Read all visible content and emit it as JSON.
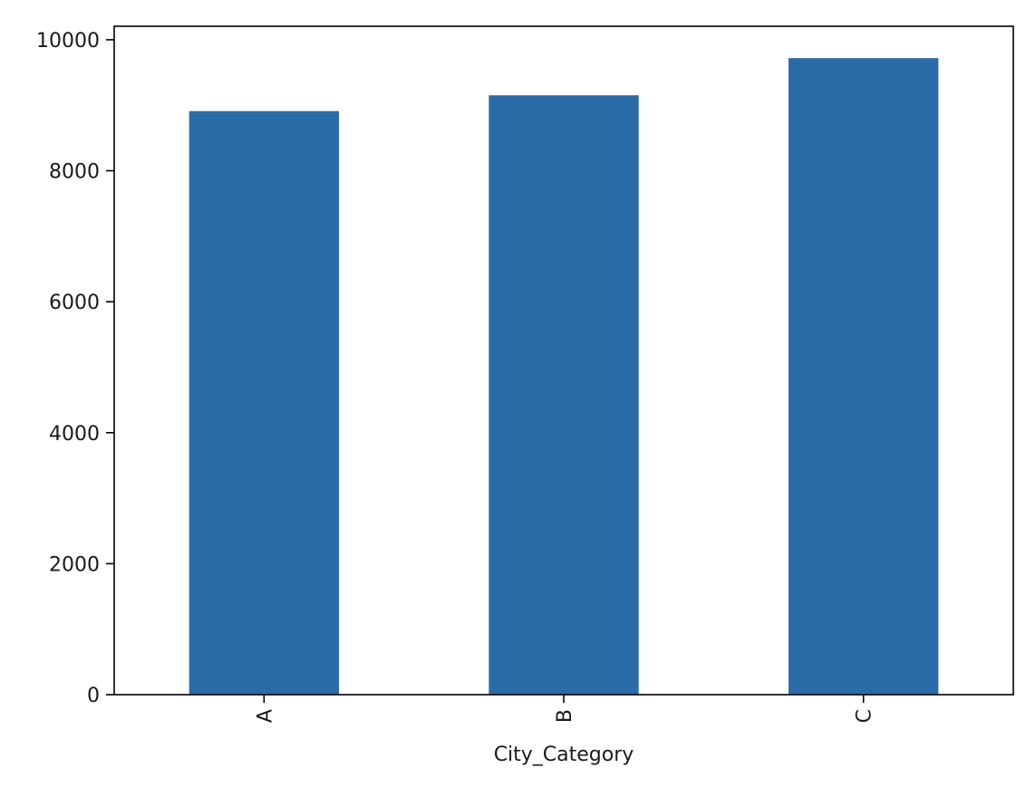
{
  "chart_data": {
    "type": "bar",
    "categories": [
      "A",
      "B",
      "C"
    ],
    "values": [
      8911,
      9152,
      9720
    ],
    "xlabel": "City_Category",
    "ylabel": "",
    "ylim": [
      0,
      10206
    ],
    "yticks": [
      0,
      2000,
      4000,
      6000,
      8000,
      10000
    ],
    "grid": false,
    "legend": "none",
    "bar_color": "#2b6ca8",
    "axis_color": "#000000"
  }
}
